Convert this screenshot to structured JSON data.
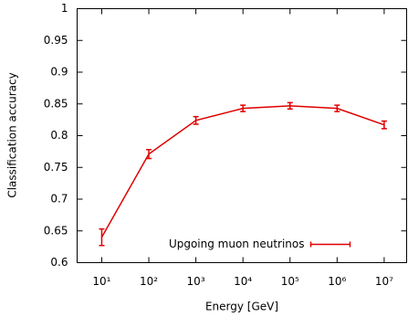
{
  "chart_data": {
    "type": "line",
    "xlabel": "Energy [GeV]",
    "ylabel": "Classification accuracy",
    "x": [
      10,
      100,
      1000,
      10000,
      100000,
      1000000,
      10000000
    ],
    "xscale": "log",
    "xlim": [
      3,
      30000000
    ],
    "xticks": [
      {
        "value": 10,
        "label": "10¹"
      },
      {
        "value": 100,
        "label": "10²"
      },
      {
        "value": 1000,
        "label": "10³"
      },
      {
        "value": 10000,
        "label": "10⁴"
      },
      {
        "value": 100000,
        "label": "10⁵"
      },
      {
        "value": 1000000,
        "label": "10⁶"
      },
      {
        "value": 10000000,
        "label": "10⁷"
      }
    ],
    "ylim": [
      0.6,
      1
    ],
    "yticks": [
      0.6,
      0.65,
      0.7,
      0.75,
      0.8,
      0.85,
      0.9,
      0.95,
      1
    ],
    "legend": "lower right",
    "series": [
      {
        "name": "Upgoing muon neutrinos",
        "color": "#e00000",
        "values": [
          0.64,
          0.771,
          0.824,
          0.843,
          0.847,
          0.843,
          0.817
        ],
        "errors": [
          0.013,
          0.007,
          0.006,
          0.005,
          0.005,
          0.005,
          0.006
        ]
      }
    ]
  }
}
